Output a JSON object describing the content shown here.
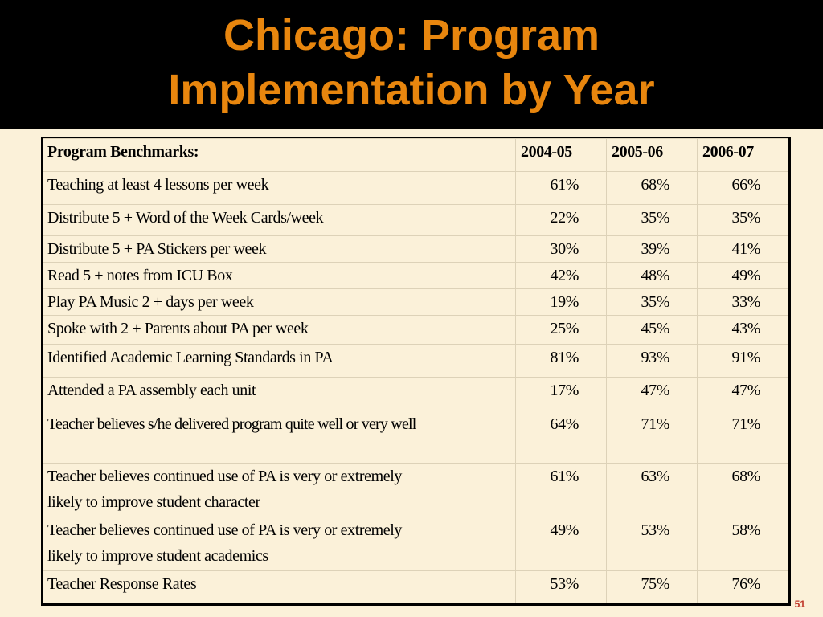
{
  "slide": {
    "title_line1": "Chicago: Program",
    "title_line2": "Implementation by Year",
    "page_number": "51",
    "colors": {
      "header_bg": "#000000",
      "title": "#e8860e",
      "background": "#fbf1d9",
      "page_number": "#c0392b"
    }
  },
  "table": {
    "headers": [
      "Program Benchmarks:",
      "2004-05",
      "2005-06",
      "2006-07"
    ],
    "rows": [
      {
        "benchmark": "Teaching at least 4 lessons per week",
        "v2004": "61%",
        "v2005": "68%",
        "v2006": "66%"
      },
      {
        "benchmark": "Distribute 5 + Word of the Week Cards/week",
        "v2004": "22%",
        "v2005": "35%",
        "v2006": "35%"
      },
      {
        "benchmark": "Distribute 5 + PA Stickers per week",
        "v2004": "30%",
        "v2005": "39%",
        "v2006": "41%"
      },
      {
        "benchmark": "Read 5 + notes from ICU Box",
        "v2004": "42%",
        "v2005": "48%",
        "v2006": "49%"
      },
      {
        "benchmark": "Play PA Music 2 + days per week",
        "v2004": "19%",
        "v2005": "35%",
        "v2006": "33%"
      },
      {
        "benchmark": "Spoke with 2 + Parents about PA per week",
        "v2004": "25%",
        "v2005": "45%",
        "v2006": "43%"
      },
      {
        "benchmark": "Identified Academic Learning Standards in PA",
        "v2004": "81%",
        "v2005": "93%",
        "v2006": "91%"
      },
      {
        "benchmark": "Attended a PA assembly each unit",
        "v2004": "17%",
        "v2005": "47%",
        "v2006": "47%"
      },
      {
        "benchmark": "Teacher believes s/he delivered program quite well or very well",
        "v2004": "64%",
        "v2005": "71%",
        "v2006": "71%"
      },
      {
        "benchmark_line1": "Teacher believes continued use of PA is very or extremely",
        "benchmark_line2": "likely to improve student character",
        "v2004": "61%",
        "v2005": "63%",
        "v2006": "68%"
      },
      {
        "benchmark_line1": "Teacher believes continued use of PA is very or extremely",
        "benchmark_line2": "likely to improve student academics",
        "v2004": "49%",
        "v2005": "53%",
        "v2006": "58%"
      },
      {
        "benchmark": "Teacher Response Rates",
        "v2004": "53%",
        "v2005": "75%",
        "v2006": "76%"
      }
    ]
  }
}
